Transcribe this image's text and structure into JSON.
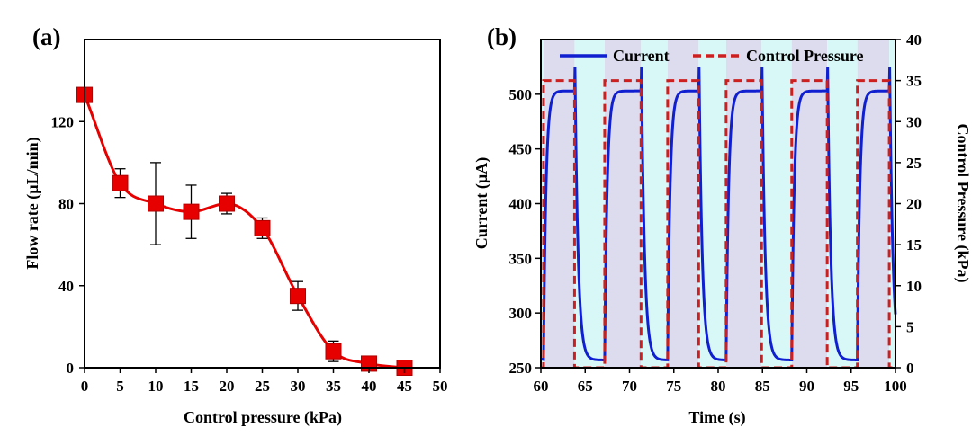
{
  "chart_data": [
    {
      "panel_label": "(a)",
      "type": "scatter",
      "xlabel": "Control pressure (kPa)",
      "ylabel": "Flow rate (µL/min)",
      "xlim": [
        0,
        50
      ],
      "ylim": [
        0,
        160
      ],
      "xticks": [
        0,
        5,
        10,
        15,
        20,
        25,
        30,
        35,
        40,
        45,
        50
      ],
      "yticks": [
        0,
        40,
        80,
        120
      ],
      "grid": false,
      "series": [
        {
          "marker": "square",
          "color": "#e60000",
          "line": "smooth",
          "points": [
            {
              "x": 0,
              "y": 133,
              "err": 0
            },
            {
              "x": 5,
              "y": 90,
              "err": 7
            },
            {
              "x": 10,
              "y": 80,
              "err": 20
            },
            {
              "x": 15,
              "y": 76,
              "err": 13
            },
            {
              "x": 20,
              "y": 80,
              "err": 5
            },
            {
              "x": 25,
              "y": 68,
              "err": 5
            },
            {
              "x": 30,
              "y": 35,
              "err": 7
            },
            {
              "x": 35,
              "y": 8,
              "err": 5
            },
            {
              "x": 40,
              "y": 2,
              "err": 2
            },
            {
              "x": 45,
              "y": 0,
              "err": 0
            }
          ]
        }
      ]
    },
    {
      "panel_label": "(b)",
      "type": "line",
      "xlabel": "Time (s)",
      "ylabel": "Current (µA)",
      "ylabel_right": "Control Pressure (kPa)",
      "xlim": [
        60,
        100
      ],
      "ylim": [
        250,
        550
      ],
      "ylim_right": [
        0,
        40
      ],
      "xticks": [
        60,
        65,
        70,
        75,
        80,
        85,
        90,
        95,
        100
      ],
      "yticks": [
        250,
        300,
        350,
        400,
        450,
        500
      ],
      "yticks_right": [
        0,
        5,
        10,
        15,
        20,
        25,
        30,
        35,
        40
      ],
      "grid": false,
      "legend_position": "top",
      "series": [
        {
          "name": "Current",
          "color": "#1020d0",
          "style": "solid",
          "axis": "left",
          "on_value": 503,
          "off_value": 257,
          "peak_value": 525
        },
        {
          "name": "Control Pressure",
          "color": "#cc2020",
          "style": "dashed",
          "axis": "right",
          "on_value": 35,
          "off_value": 0,
          "on_intervals": [
            [
              60.3,
              63.8
            ],
            [
              67.2,
              71.3
            ],
            [
              74.3,
              77.8
            ],
            [
              80.9,
              84.9
            ],
            [
              88.3,
              92.3
            ],
            [
              95.7,
              99.3
            ]
          ]
        }
      ],
      "shaded_bands": {
        "on_color": "#dcdcee",
        "off_color": "#d8f8f8"
      }
    }
  ]
}
